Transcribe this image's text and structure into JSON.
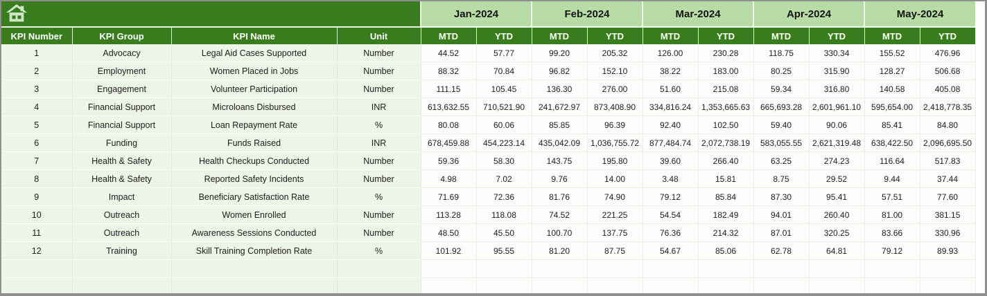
{
  "colors": {
    "header_dark_green": "#3a7d1f",
    "month_light_green": "#b7dba4",
    "left_row_green": "#edf5e7",
    "value_row_white": "#fcfdfa",
    "frame_gray": "#8f8f8f",
    "home_icon_pale_green": "#cfe8ca"
  },
  "icons": {
    "home": "home-icon"
  },
  "table": {
    "left_headers": [
      "KPI Number",
      "KPI Group",
      "KPI Name",
      "Unit"
    ],
    "months": [
      "Jan-2024",
      "Feb-2024",
      "Mar-2024",
      "Apr-2024",
      "May-2024"
    ],
    "sub_headers": [
      "MTD",
      "YTD"
    ],
    "rows": [
      {
        "number": "1",
        "group": "Advocacy",
        "name": "Legal Aid Cases Supported",
        "unit": "Number",
        "values": [
          "44.52",
          "57.77",
          "99.20",
          "205.32",
          "126.00",
          "230.28",
          "118.75",
          "330.34",
          "155.52",
          "476.96"
        ]
      },
      {
        "number": "2",
        "group": "Employment",
        "name": "Women Placed in Jobs",
        "unit": "Number",
        "values": [
          "88.32",
          "70.84",
          "96.82",
          "152.10",
          "38.22",
          "183.00",
          "80.25",
          "315.90",
          "128.27",
          "506.68"
        ]
      },
      {
        "number": "3",
        "group": "Engagement",
        "name": "Volunteer Participation",
        "unit": "Number",
        "values": [
          "111.15",
          "105.45",
          "136.30",
          "276.00",
          "51.60",
          "215.08",
          "59.34",
          "316.80",
          "140.58",
          "405.08"
        ]
      },
      {
        "number": "4",
        "group": "Financial Support",
        "name": "Microloans Disbursed",
        "unit": "INR",
        "values": [
          "613,632.55",
          "710,521.90",
          "241,672.97",
          "873,408.90",
          "334,816.24",
          "1,353,665.63",
          "665,693.28",
          "2,601,961.10",
          "595,654.00",
          "2,418,778.35"
        ]
      },
      {
        "number": "5",
        "group": "Financial Support",
        "name": "Loan Repayment Rate",
        "unit": "%",
        "values": [
          "80.08",
          "60.06",
          "85.85",
          "96.39",
          "92.40",
          "102.50",
          "59.40",
          "90.06",
          "85.41",
          "84.80"
        ]
      },
      {
        "number": "6",
        "group": "Funding",
        "name": "Funds Raised",
        "unit": "INR",
        "values": [
          "678,459.88",
          "454,223.14",
          "435,042.09",
          "1,036,755.72",
          "877,484.74",
          "2,072,738.19",
          "583,055.55",
          "2,621,319.48",
          "638,422.50",
          "2,096,695.50"
        ]
      },
      {
        "number": "7",
        "group": "Health & Safety",
        "name": "Health Checkups Conducted",
        "unit": "Number",
        "values": [
          "59.36",
          "58.30",
          "143.75",
          "195.80",
          "39.60",
          "266.40",
          "63.25",
          "274.23",
          "116.64",
          "517.83"
        ]
      },
      {
        "number": "8",
        "group": "Health & Safety",
        "name": "Reported Safety Incidents",
        "unit": "Number",
        "values": [
          "4.98",
          "7.02",
          "9.76",
          "14.00",
          "3.48",
          "15.81",
          "8.75",
          "29.52",
          "9.44",
          "37.44"
        ]
      },
      {
        "number": "9",
        "group": "Impact",
        "name": "Beneficiary Satisfaction Rate",
        "unit": "%",
        "values": [
          "71.69",
          "72.36",
          "81.76",
          "74.90",
          "79.12",
          "85.84",
          "87.30",
          "95.41",
          "57.51",
          "77.60"
        ]
      },
      {
        "number": "10",
        "group": "Outreach",
        "name": "Women Enrolled",
        "unit": "Number",
        "values": [
          "113.28",
          "118.08",
          "74.52",
          "221.25",
          "54.54",
          "182.49",
          "94.01",
          "260.40",
          "81.00",
          "381.15"
        ]
      },
      {
        "number": "11",
        "group": "Outreach",
        "name": "Awareness Sessions Conducted",
        "unit": "Number",
        "values": [
          "48.50",
          "45.50",
          "100.70",
          "137.75",
          "76.36",
          "214.32",
          "87.01",
          "320.25",
          "83.66",
          "330.96"
        ]
      },
      {
        "number": "12",
        "group": "Training",
        "name": "Skill Training Completion Rate",
        "unit": "%",
        "values": [
          "101.92",
          "95.55",
          "81.20",
          "87.75",
          "54.67",
          "85.06",
          "62.78",
          "64.81",
          "79.12",
          "89.93"
        ]
      },
      {
        "number": "",
        "group": "",
        "name": "",
        "unit": "",
        "values": [
          "",
          "",
          "",
          "",
          "",
          "",
          "",
          "",
          "",
          ""
        ]
      },
      {
        "number": "",
        "group": "",
        "name": "",
        "unit": "",
        "values": [
          "",
          "",
          "",
          "",
          "",
          "",
          "",
          "",
          "",
          ""
        ]
      }
    ]
  }
}
